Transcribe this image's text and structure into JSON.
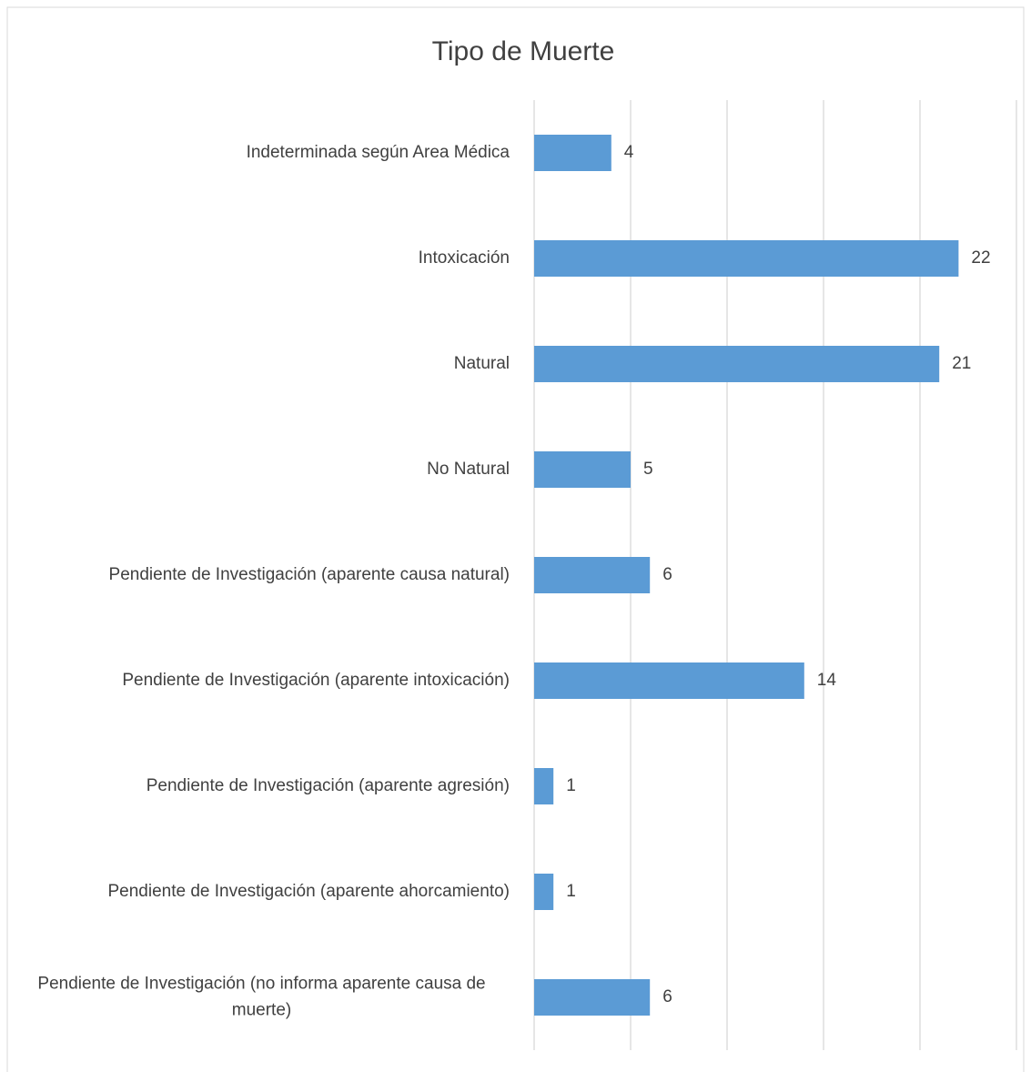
{
  "chart_data": {
    "type": "bar",
    "orientation": "horizontal",
    "title": "Tipo de Muerte",
    "categories": [
      "Indeterminada según Area Médica",
      "Intoxicación",
      "Natural",
      "No Natural",
      "Pendiente de Investigación (aparente causa natural)",
      "Pendiente de Investigación (aparente intoxicación)",
      "Pendiente de Investigación (aparente agresión)",
      "Pendiente de Investigación (aparente ahorcamiento)",
      "Pendiente de Investigación (no  informa aparente causa de muerte)"
    ],
    "values": [
      4,
      22,
      21,
      5,
      6,
      14,
      1,
      1,
      6
    ],
    "color": "#5b9bd5",
    "xlim": [
      0,
      25
    ],
    "xticks": [
      0,
      5,
      10,
      15,
      20,
      25
    ],
    "grid": true
  }
}
